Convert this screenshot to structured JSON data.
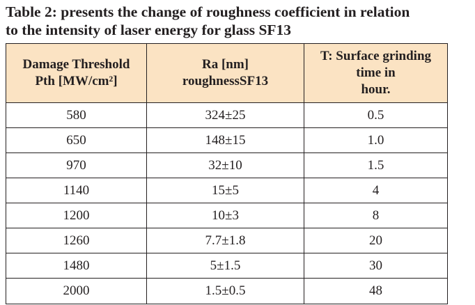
{
  "caption": {
    "line1": "Table 2: presents the change of roughness coefficient in relation",
    "line2": "to the intensity of laser energy for glass SF13"
  },
  "table": {
    "headers": [
      {
        "lines": [
          "Damage Threshold",
          "Pth [MW/cm²]"
        ]
      },
      {
        "lines": [
          "Ra [nm]",
          "roughnessSF13"
        ]
      },
      {
        "lines": [
          "T: Surface grinding",
          "time in",
          "hour."
        ]
      }
    ],
    "rows": [
      [
        "580",
        "324±25",
        "0.5"
      ],
      [
        "650",
        "148±15",
        "1.0"
      ],
      [
        "970",
        "32±10",
        "1.5"
      ],
      [
        "1140",
        "15±5",
        "4"
      ],
      [
        "1200",
        "10±3",
        "8"
      ],
      [
        "1260",
        "7.7±1.8",
        "20"
      ],
      [
        "1480",
        "5±1.5",
        "30"
      ],
      [
        "2000",
        "1.5±0.5",
        "48"
      ]
    ]
  }
}
